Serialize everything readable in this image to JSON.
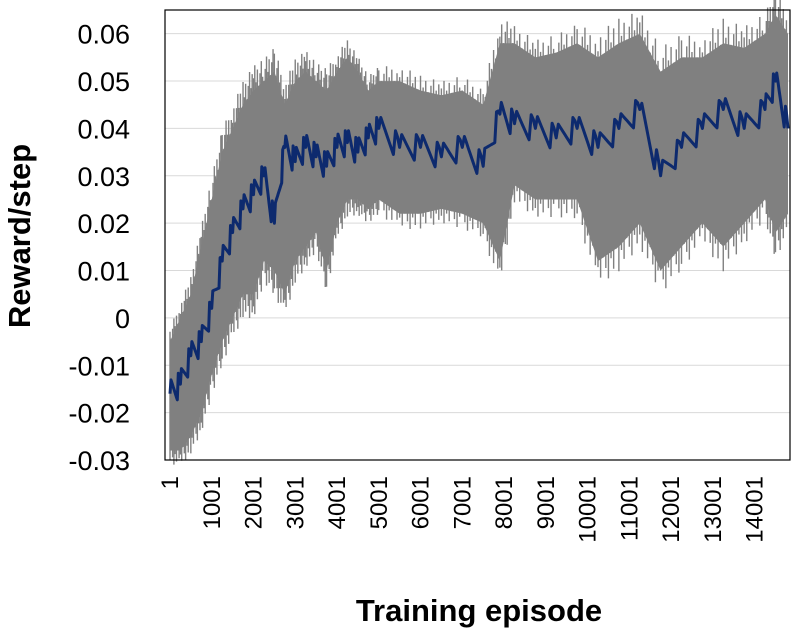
{
  "chart_data": {
    "type": "line",
    "title": "",
    "xlabel": "Training episode",
    "ylabel": "Reward/step",
    "xlim": [
      1,
      14800
    ],
    "ylim": [
      -0.03,
      0.065
    ],
    "grid": true,
    "legend": "none",
    "x_tick_labels": [
      "1",
      "1001",
      "2001",
      "3001",
      "4001",
      "5001",
      "6001",
      "7001",
      "8001",
      "9001",
      "10001",
      "11001",
      "12001",
      "13001",
      "14001"
    ],
    "y_tick_labels": [
      "-0.03",
      "-0.02",
      "-0.01",
      "0",
      "0.01",
      "0.02",
      "0.03",
      "0.04",
      "0.05",
      "0.06"
    ],
    "series": [
      {
        "role": "range",
        "color": "#808080",
        "x": [
          1,
          250,
          500,
          750,
          1000,
          1250,
          1500,
          1750,
          2000,
          2250,
          2500,
          2750,
          3000,
          3250,
          3500,
          3750,
          4000,
          4250,
          4500,
          4750,
          5000,
          5500,
          6000,
          6500,
          7000,
          7500,
          7900,
          8250,
          8750,
          9250,
          9750,
          10250,
          10750,
          11250,
          11750,
          12250,
          12750,
          13250,
          13750,
          14250,
          14500,
          14800
        ],
        "upper": [
          -0.005,
          0.0,
          0.005,
          0.015,
          0.025,
          0.035,
          0.04,
          0.045,
          0.048,
          0.05,
          0.052,
          0.045,
          0.05,
          0.052,
          0.05,
          0.048,
          0.052,
          0.055,
          0.052,
          0.048,
          0.05,
          0.05,
          0.048,
          0.047,
          0.048,
          0.045,
          0.058,
          0.058,
          0.055,
          0.056,
          0.058,
          0.055,
          0.058,
          0.06,
          0.052,
          0.055,
          0.055,
          0.058,
          0.057,
          0.06,
          0.064,
          0.06
        ],
        "lower": [
          -0.028,
          -0.028,
          -0.025,
          -0.02,
          -0.012,
          -0.005,
          0.0,
          0.005,
          0.005,
          0.012,
          0.01,
          0.005,
          0.012,
          0.015,
          0.018,
          0.01,
          0.02,
          0.025,
          0.025,
          0.023,
          0.025,
          0.022,
          0.022,
          0.023,
          0.022,
          0.02,
          0.012,
          0.028,
          0.025,
          0.025,
          0.025,
          0.012,
          0.015,
          0.02,
          0.01,
          0.015,
          0.02,
          0.015,
          0.02,
          0.025,
          0.018,
          0.022
        ]
      },
      {
        "role": "mean",
        "color": "#0d2a6e",
        "x": [
          1,
          250,
          500,
          750,
          1000,
          1250,
          1500,
          1750,
          2000,
          2250,
          2500,
          2750,
          3000,
          3250,
          3500,
          3750,
          4000,
          4250,
          4500,
          4750,
          5000,
          5500,
          6000,
          6500,
          7000,
          7500,
          7900,
          8250,
          8750,
          9250,
          9750,
          10250,
          10750,
          11250,
          11750,
          12250,
          12750,
          13250,
          13750,
          14250,
          14500,
          14800
        ],
        "values": [
          -0.016,
          -0.014,
          -0.008,
          -0.005,
          0.002,
          0.012,
          0.018,
          0.023,
          0.026,
          0.03,
          0.02,
          0.036,
          0.033,
          0.036,
          0.034,
          0.032,
          0.036,
          0.037,
          0.035,
          0.038,
          0.04,
          0.036,
          0.036,
          0.034,
          0.036,
          0.032,
          0.043,
          0.041,
          0.04,
          0.038,
          0.04,
          0.036,
          0.04,
          0.044,
          0.03,
          0.036,
          0.04,
          0.044,
          0.04,
          0.044,
          0.05,
          0.04
        ]
      }
    ]
  }
}
